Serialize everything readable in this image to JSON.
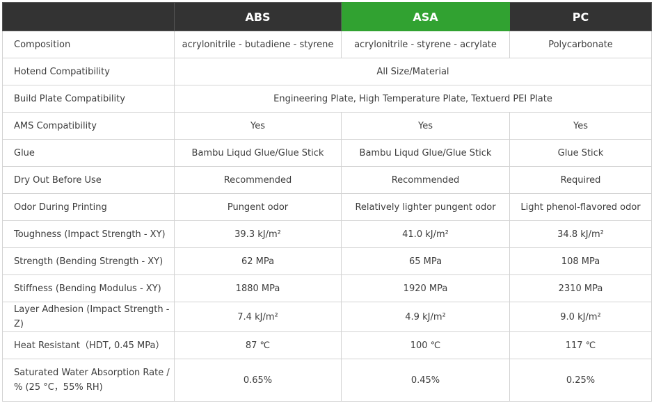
{
  "header": {
    "corner": "",
    "columns": [
      "ABS",
      "ASA",
      "PC"
    ],
    "highlight_color": "#31a231",
    "header_bg": "#333333"
  },
  "rows": [
    {
      "label": "Composition",
      "values": [
        "acrylonitrile - butadiene - styrene",
        "acrylonitrile - styrene - acrylate",
        "Polycarbonate"
      ]
    },
    {
      "label": "Hotend Compatibility",
      "merged": "All Size/Material"
    },
    {
      "label": "Build Plate Compatibility",
      "merged": "Engineering Plate, High Temperature Plate, Textuerd PEI Plate"
    },
    {
      "label": "AMS Compatibility",
      "values": [
        "Yes",
        "Yes",
        "Yes"
      ]
    },
    {
      "label": "Glue",
      "values": [
        "Bambu Liqud Glue/Glue Stick",
        "Bambu Liqud Glue/Glue Stick",
        "Glue Stick"
      ]
    },
    {
      "label": "Dry Out Before Use",
      "values": [
        "Recommended",
        "Recommended",
        "Required"
      ]
    },
    {
      "label": "Odor During Printing",
      "values": [
        "Pungent odor",
        "Relatively lighter pungent odor",
        "Light phenol-flavored odor"
      ]
    },
    {
      "label": "Toughness (Impact Strength - XY)",
      "values": [
        "39.3 kJ/m²",
        "41.0 kJ/m²",
        "34.8 kJ/m²"
      ]
    },
    {
      "label": "Strength (Bending Strength - XY)",
      "values": [
        "62 MPa",
        "65 MPa",
        "108 MPa"
      ]
    },
    {
      "label": "Stiffness (Bending Modulus - XY)",
      "values": [
        "1880 MPa",
        "1920 MPa",
        "2310 MPa"
      ]
    },
    {
      "label": "Layer Adhesion (Impact Strength - Z)",
      "values": [
        "7.4 kJ/m²",
        "4.9 kJ/m²",
        "9.0 kJ/m²"
      ]
    },
    {
      "label": "Heat Resistant（HDT, 0.45 MPa）",
      "values": [
        "87 ℃",
        "100 ℃",
        "117 ℃"
      ]
    },
    {
      "label": "Saturated Water Absorption Rate / % (25 °C，55% RH)",
      "values": [
        "0.65%",
        "0.45%",
        "0.25%"
      ]
    }
  ]
}
